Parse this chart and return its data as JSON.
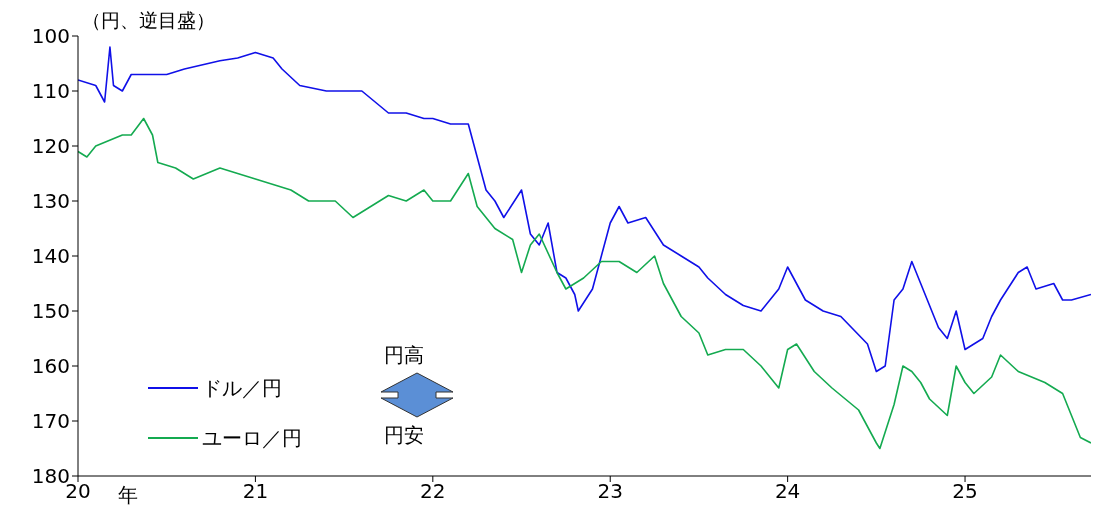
{
  "chart_data": {
    "type": "line",
    "ylabel": "（円、逆目盛）",
    "xlabel": "年",
    "xlim": [
      20,
      25.71
    ],
    "xticks": [
      20,
      21,
      22,
      23,
      24,
      25
    ],
    "ylim": [
      180,
      100
    ],
    "yticks": [
      100,
      110,
      120,
      130,
      140,
      150,
      160,
      170,
      180
    ],
    "legend": "bottom left",
    "marker": "none",
    "line_style": "solid",
    "annotations": [
      "円高",
      "円安"
    ],
    "series": [
      {
        "name": "ドル／円",
        "color": "#1010e8",
        "x": [
          20,
          20.1,
          20.15,
          20.18,
          20.2,
          20.25,
          20.3,
          20.5,
          20.6,
          20.8,
          20.9,
          21,
          21.1,
          21.15,
          21.25,
          21.4,
          21.5,
          21.6,
          21.75,
          21.85,
          21.95,
          22,
          22.1,
          22.2,
          22.25,
          22.3,
          22.35,
          22.4,
          22.5,
          22.55,
          22.6,
          22.65,
          22.7,
          22.75,
          22.8,
          22.82,
          22.9,
          23,
          23.05,
          23.1,
          23.2,
          23.3,
          23.4,
          23.5,
          23.55,
          23.65,
          23.75,
          23.85,
          23.95,
          24,
          24.1,
          24.2,
          24.3,
          24.45,
          24.5,
          24.55,
          24.6,
          24.65,
          24.7,
          24.75,
          24.85,
          24.9,
          24.95,
          25,
          25.05,
          25.1,
          25.15,
          25.2,
          25.3,
          25.35,
          25.4,
          25.5,
          25.55,
          25.6,
          25.71
        ],
        "values": [
          108,
          109,
          112,
          102,
          109,
          110,
          107,
          107,
          106,
          104.5,
          104,
          103,
          104,
          106,
          109,
          110,
          110,
          110,
          114,
          114,
          115,
          115,
          116,
          116,
          122,
          128,
          130,
          133,
          128,
          136,
          138,
          134,
          143,
          144,
          147,
          150,
          146,
          134,
          131,
          134,
          133,
          138,
          140,
          142,
          144,
          147,
          149,
          150,
          146,
          142,
          148,
          150,
          151,
          156,
          161,
          160,
          148,
          146,
          141,
          145,
          153,
          155,
          150,
          157,
          156,
          155,
          151,
          148,
          143,
          142,
          146,
          145,
          148,
          148,
          147
        ]
      },
      {
        "name": "ユーロ／円",
        "color": "#14aa50",
        "x": [
          20,
          20.05,
          20.1,
          20.25,
          20.3,
          20.37,
          20.42,
          20.45,
          20.55,
          20.65,
          20.8,
          20.9,
          21,
          21.1,
          21.2,
          21.3,
          21.45,
          21.55,
          21.65,
          21.75,
          21.85,
          21.95,
          22,
          22.1,
          22.2,
          22.25,
          22.35,
          22.45,
          22.5,
          22.55,
          22.6,
          22.7,
          22.75,
          22.85,
          22.95,
          23.05,
          23.15,
          23.25,
          23.3,
          23.4,
          23.5,
          23.55,
          23.65,
          23.75,
          23.85,
          23.95,
          24,
          24.05,
          24.15,
          24.25,
          24.4,
          24.5,
          24.52,
          24.6,
          24.65,
          24.7,
          24.75,
          24.8,
          24.9,
          24.95,
          25,
          25.05,
          25.15,
          25.2,
          25.3,
          25.45,
          25.55,
          25.6,
          25.65,
          25.71
        ],
        "values": [
          121,
          122,
          120,
          118,
          118,
          115,
          118,
          123,
          124,
          126,
          124,
          125,
          126,
          127,
          128,
          130,
          130,
          133,
          131,
          129,
          130,
          128,
          130,
          130,
          125,
          131,
          135,
          137,
          143,
          138,
          136,
          143,
          146,
          144,
          141,
          141,
          143,
          140,
          145,
          151,
          154,
          158,
          157,
          157,
          160,
          164,
          157,
          156,
          161,
          164,
          168,
          174,
          175,
          167,
          160,
          161,
          163,
          166,
          169,
          160,
          163,
          165,
          162,
          158,
          161,
          163,
          165,
          169,
          173,
          174
        ]
      }
    ]
  }
}
